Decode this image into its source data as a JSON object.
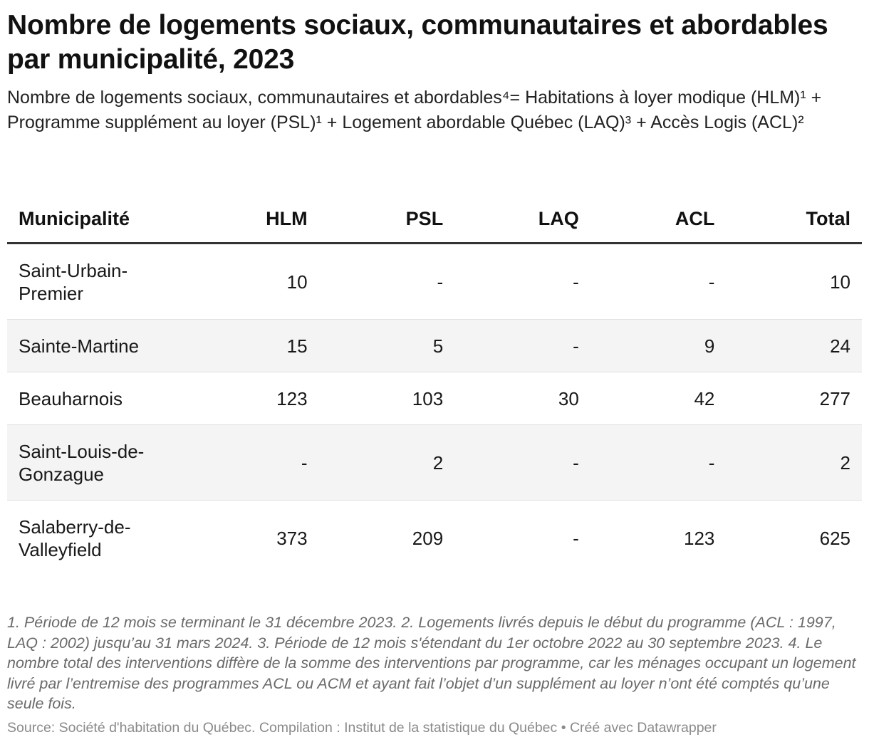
{
  "title": "Nombre de logements sociaux, communautaires et abordables par municipalité, 2023",
  "subtitle": "Nombre de logements sociaux, communautaires et abordables⁴= Habitations à loyer modique (HLM)¹ + Programme supplément au loyer (PSL)¹ + Logement abordable Québec (LAQ)³ + Accès Logis (ACL)²",
  "chart_data": {
    "type": "table",
    "title": "Nombre de logements sociaux, communautaires et abordables par municipalité, 2023",
    "columns": [
      "Municipalité",
      "HLM",
      "PSL",
      "LAQ",
      "ACL",
      "Total"
    ],
    "rows": [
      {
        "name": "Saint-Urbain-Premier",
        "values": [
          "10",
          "-",
          "-",
          "-",
          "10"
        ]
      },
      {
        "name": "Sainte-Martine",
        "values": [
          "15",
          "5",
          "-",
          "9",
          "24"
        ]
      },
      {
        "name": "Beauharnois",
        "values": [
          "123",
          "103",
          "30",
          "42",
          "277"
        ]
      },
      {
        "name": "Saint-Louis-de-Gonzague",
        "values": [
          "-",
          "2",
          "-",
          "-",
          "2"
        ]
      },
      {
        "name": "Salaberry-de-Valleyfield",
        "values": [
          "373",
          "209",
          "-",
          "123",
          "625"
        ]
      }
    ]
  },
  "footnote": "1. Période de 12 mois se terminant le 31 décembre 2023. 2. Logements livrés depuis le début du programme (ACL : 1997, LAQ : 2002) jusqu’au 31 mars 2024. 3. Période de 12 mois s'étendant du 1er octobre 2022 au 30 septembre 2023. 4. Le nombre total des interventions diffère de la somme des interventions par programme, car les ménages occupant un logement livré par l’entremise des programmes ACL ou ACM et ayant fait l’objet d’un supplément au loyer n’ont été comptés qu’une seule fois.",
  "source": "Source: Société d'habitation du Québec. Compilation : Institut de la statistique du Québec • Créé avec Datawrapper"
}
